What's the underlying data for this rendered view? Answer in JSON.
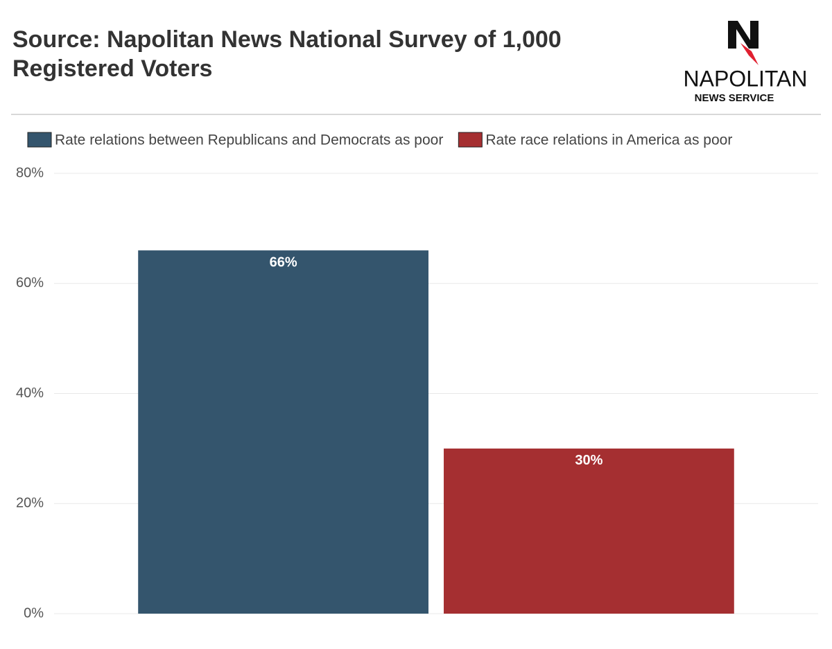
{
  "chart_data": {
    "type": "bar",
    "title": "Source: Napolitan News National Survey of 1,000 Registered Voters",
    "categories": [
      null
    ],
    "series": [
      {
        "name": "Rate relations between Republicans and Democrats as poor",
        "color": "#34556d",
        "values": [
          66
        ],
        "value_labels": [
          "66%"
        ]
      },
      {
        "name": "Rate race relations in America as poor",
        "color": "#a52f31",
        "values": [
          30
        ],
        "value_labels": [
          "30%"
        ]
      }
    ],
    "ylim": [
      0,
      80
    ],
    "yticks": [
      {
        "value": 0,
        "label": "0%"
      },
      {
        "value": 20,
        "label": "20%"
      },
      {
        "value": 40,
        "label": "40%"
      },
      {
        "value": 60,
        "label": "60%"
      },
      {
        "value": 80,
        "label": "80%"
      }
    ],
    "grid": true,
    "legend": "top"
  },
  "logo": {
    "name": "NAPOLITAN",
    "tagline": "NEWS SERVICE"
  }
}
